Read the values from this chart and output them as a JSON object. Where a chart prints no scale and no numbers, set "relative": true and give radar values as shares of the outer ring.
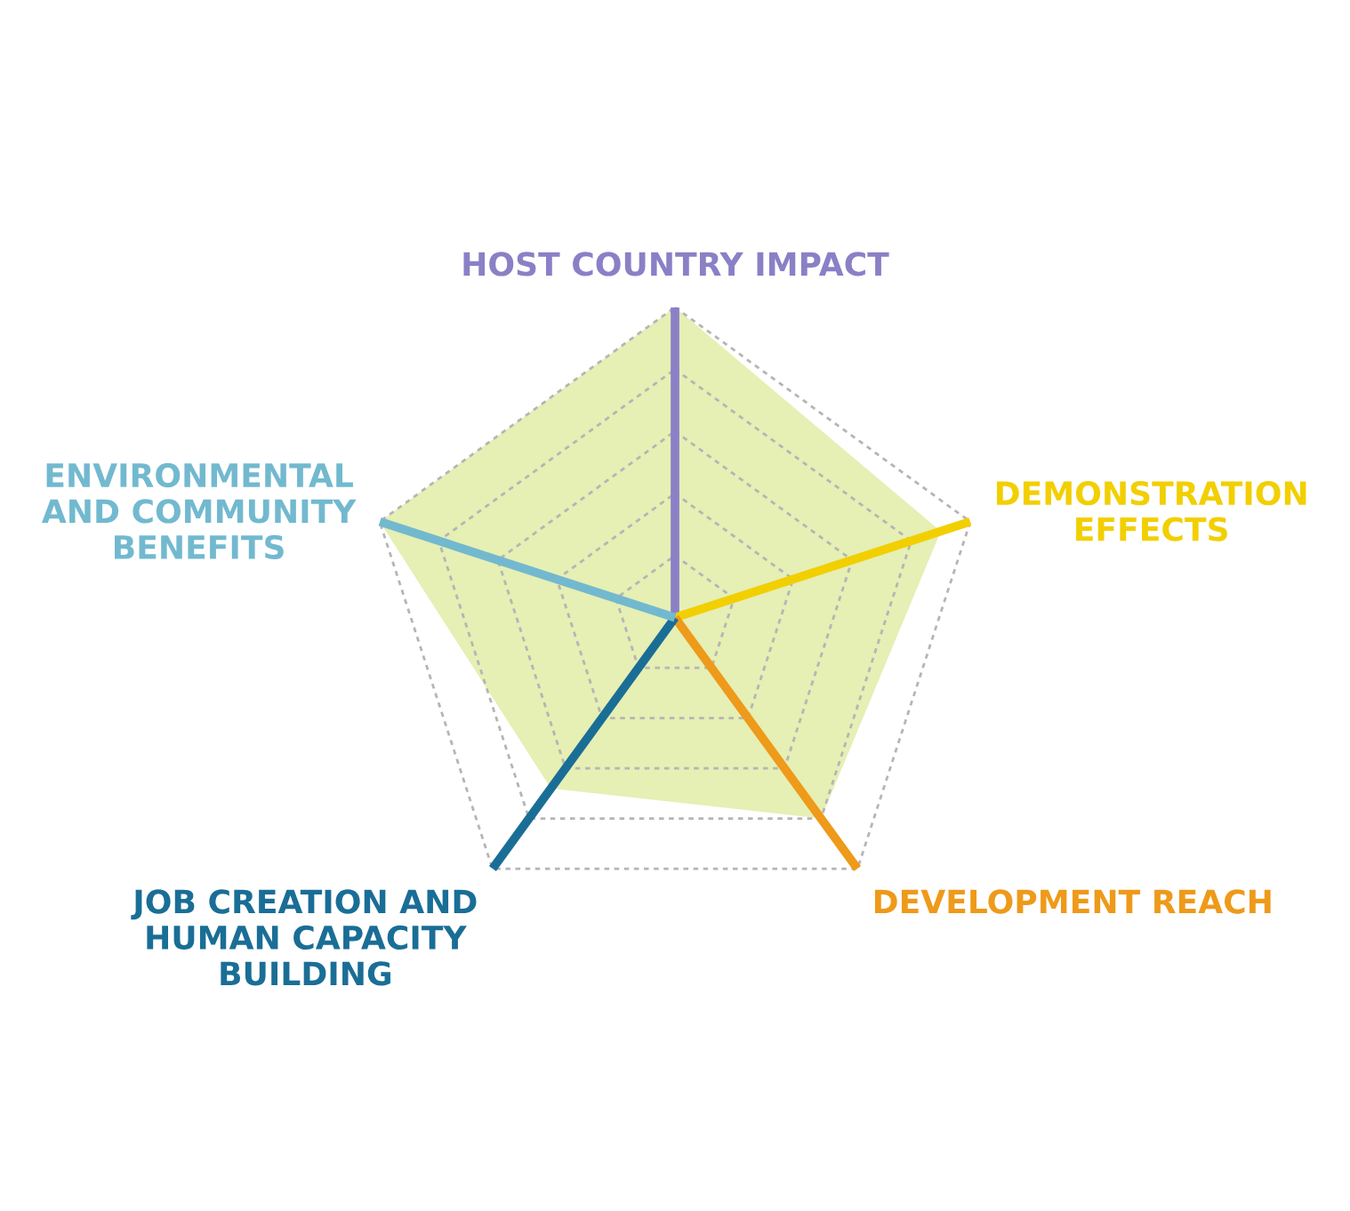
{
  "chart_data": {
    "type": "radar",
    "relative": true,
    "grid": true,
    "categories": [
      "HOST COUNTRY IMPACT",
      "DEMONSTRATION EFFECTS",
      "DEVELOPMENT REACH",
      "JOB CREATION AND HUMAN CAPACITY BUILDING",
      "ENVIRONMENTAL AND COMMUNITY BENEFITS"
    ],
    "colors": [
      "#8a80c6",
      "#f2cf00",
      "#ee9a1a",
      "#1a6e96",
      "#72b9cf"
    ],
    "series": [
      {
        "color": "#e6efb4",
        "values": [
          1.0,
          0.9,
          0.8,
          0.68,
          1.0
        ]
      }
    ]
  }
}
